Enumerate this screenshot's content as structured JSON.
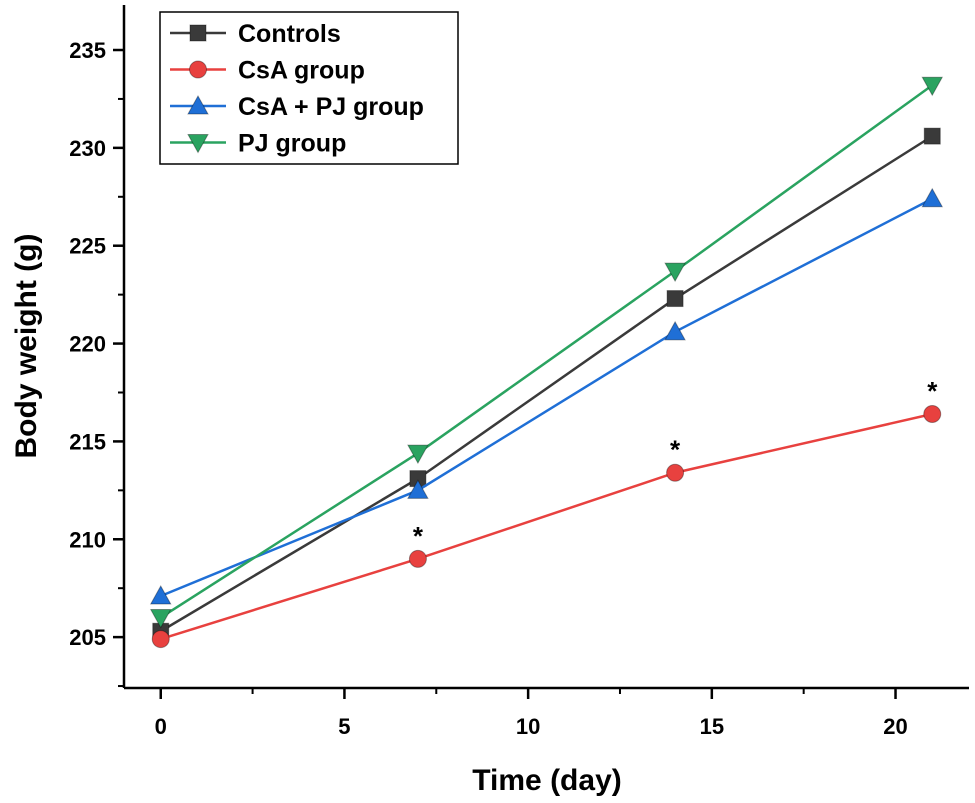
{
  "chart_data": {
    "type": "line",
    "title": "",
    "xlabel": "Time (day)",
    "ylabel": "Body weight (g)",
    "x": [
      0,
      7,
      14,
      21
    ],
    "xlim": [
      -1,
      22
    ],
    "ylim": [
      202.4,
      237.3
    ],
    "xticks": [
      0,
      5,
      10,
      15,
      20
    ],
    "yticks": [
      205,
      210,
      215,
      220,
      225,
      230,
      235
    ],
    "xtick_labels": [
      "0",
      "5",
      "10",
      "15",
      "20"
    ],
    "ytick_labels": [
      "205",
      "210",
      "215",
      "220",
      "225",
      "230",
      "235"
    ],
    "grid": false,
    "legend_position": "top-left",
    "series": [
      {
        "name": "Controls",
        "values": [
          205.3,
          213.1,
          222.3,
          230.6
        ],
        "color": "#3a3a3a",
        "marker": "square"
      },
      {
        "name": "CsA group",
        "values": [
          204.9,
          209.0,
          213.4,
          216.4
        ],
        "color": "#e8413f",
        "marker": "circle"
      },
      {
        "name": "CsA + PJ group",
        "values": [
          207.1,
          212.5,
          220.6,
          227.4
        ],
        "color": "#1f6fd6",
        "marker": "triangle-up"
      },
      {
        "name": "PJ group",
        "values": [
          206.0,
          214.4,
          223.7,
          233.2
        ],
        "color": "#2aa360",
        "marker": "triangle-down"
      }
    ],
    "annotations": [
      {
        "text": "*",
        "x": 7,
        "y": 209.0
      },
      {
        "text": "*",
        "x": 14,
        "y": 213.4
      },
      {
        "text": "*",
        "x": 21,
        "y": 216.4
      }
    ]
  }
}
